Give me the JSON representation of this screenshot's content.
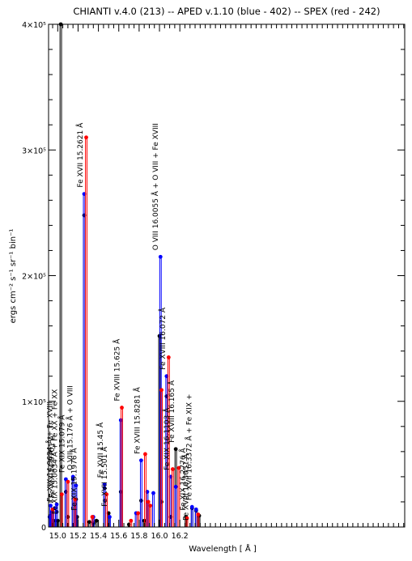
{
  "chart_data": {
    "type": "line",
    "title": "CHIANTI v.4.0 (213) -- APED v.1.10 (blue - 402) -- SPEX (red - 242)",
    "xlabel": "Wavelength [ Å ]",
    "ylabel": "ergs cm⁻² s⁻¹ sr⁻¹ bin⁻¹",
    "xlim": [
      14.91,
      18.41
    ],
    "ylim": [
      0,
      400000
    ],
    "x_ticks": [
      {
        "value": 15.0,
        "label": "15.0"
      },
      {
        "value": 15.2,
        "label": "15.2"
      },
      {
        "value": 15.4,
        "label": "15.4"
      },
      {
        "value": 15.6,
        "label": "15.6"
      },
      {
        "value": 15.8,
        "label": "15.8"
      },
      {
        "value": 16.0,
        "label": "16.0"
      },
      {
        "value": 16.2,
        "label": "16.2"
      }
    ],
    "x_minor_step": 0.05,
    "y_ticks": [
      {
        "value": 0,
        "label": "0"
      },
      {
        "value": 100000,
        "label": "1×10⁵"
      },
      {
        "value": 200000,
        "label": "2×10⁵"
      },
      {
        "value": 300000,
        "label": "3×10⁵"
      },
      {
        "value": 400000,
        "label": "4×10⁵"
      }
    ],
    "y_minor_step": 20000,
    "series": [
      {
        "name": "CHIANTI",
        "color": "#000000",
        "points": [
          [
            14.93,
            9000
          ],
          [
            14.96,
            5000
          ],
          [
            14.99,
            12000
          ],
          [
            15.0,
            5000
          ],
          [
            15.03,
            400000
          ],
          [
            15.08,
            28000
          ],
          [
            15.1,
            8000
          ],
          [
            15.15,
            38000
          ],
          [
            15.18,
            22000
          ],
          [
            15.19,
            8000
          ],
          [
            15.26,
            248000
          ],
          [
            15.31,
            4000
          ],
          [
            15.35,
            3000
          ],
          [
            15.38,
            5000
          ],
          [
            15.46,
            31000
          ],
          [
            15.5,
            11000
          ],
          [
            15.62,
            28000
          ],
          [
            15.7,
            2000
          ],
          [
            15.82,
            21000
          ],
          [
            15.85,
            5000
          ],
          [
            16.0,
            152000
          ],
          [
            16.02,
            20000
          ],
          [
            16.07,
            104000
          ],
          [
            16.11,
            8000
          ],
          [
            16.16,
            62000
          ],
          [
            16.26,
            8000
          ],
          [
            16.32,
            15000
          ],
          [
            16.36,
            13000
          ],
          [
            16.39,
            9000
          ]
        ]
      },
      {
        "name": "APED",
        "color": "#0000ff",
        "points": [
          [
            14.92,
            8000
          ],
          [
            14.93,
            17000
          ],
          [
            14.94,
            12000
          ],
          [
            14.97,
            15000
          ],
          [
            14.99,
            18000
          ],
          [
            15.08,
            38000
          ],
          [
            15.15,
            40000
          ],
          [
            15.18,
            33000
          ],
          [
            15.26,
            265000
          ],
          [
            15.35,
            8000
          ],
          [
            15.46,
            34000
          ],
          [
            15.51,
            8000
          ],
          [
            15.62,
            85000
          ],
          [
            15.77,
            11000
          ],
          [
            15.82,
            53000
          ],
          [
            15.88,
            28000
          ],
          [
            15.94,
            27000
          ],
          [
            16.01,
            215000
          ],
          [
            16.07,
            120000
          ],
          [
            16.11,
            40000
          ],
          [
            16.16,
            32000
          ],
          [
            16.32,
            16000
          ],
          [
            16.36,
            14000
          ]
        ]
      },
      {
        "name": "SPEX",
        "color": "#ff0000",
        "points": [
          [
            14.95,
            14000
          ],
          [
            15.04,
            26000
          ],
          [
            15.1,
            36000
          ],
          [
            15.17,
            22000
          ],
          [
            15.28,
            310000
          ],
          [
            15.34,
            8000
          ],
          [
            15.48,
            26000
          ],
          [
            15.63,
            95000
          ],
          [
            15.72,
            5000
          ],
          [
            15.79,
            11000
          ],
          [
            15.86,
            58000
          ],
          [
            15.89,
            20000
          ],
          [
            15.91,
            17000
          ],
          [
            16.02,
            109000
          ],
          [
            16.09,
            135000
          ],
          [
            16.13,
            46000
          ],
          [
            16.19,
            47000
          ],
          [
            16.27,
            7000
          ],
          [
            16.38,
            10000
          ]
        ]
      }
    ],
    "annotations": [
      {
        "text": "Fe XIX 14.9634 Å + Fe XVIII",
        "x": 14.96
      },
      {
        "text": "Fe XIX 14.9701 Å",
        "x": 14.98
      },
      {
        "text": "Fe XIX 15.0034 Å + Fe XX + Fe XX",
        "x": 15.01
      },
      {
        "text": "Fe XIX 15.079 Å",
        "x": 15.08
      },
      {
        "text": "O VIII 15.176 Å + O VIII",
        "x": 15.16
      },
      {
        "text": "Fe XIX 15.1976 Å",
        "x": 15.2
      },
      {
        "text": "Fe XVII 15.2621 Å",
        "x": 15.26
      },
      {
        "text": "Fe XVII 15.45 Å",
        "x": 15.46
      },
      {
        "text": "Fe XVII 15.501 Å",
        "x": 15.5
      },
      {
        "text": "Fe XVIII 15.625 Å",
        "x": 15.62
      },
      {
        "text": "Fe XVIII 15.8281 Å",
        "x": 15.82
      },
      {
        "text": "O VIII 16.0055 Å + O VIII + Fe XVIII",
        "x": 16.0
      },
      {
        "text": "Fe XVIII 16.072 Å",
        "x": 16.07
      },
      {
        "text": "Fe XIX 16.1103 Å",
        "x": 16.11
      },
      {
        "text": "Fe XVIII 16.165 Å",
        "x": 16.16
      },
      {
        "text": "Fe XIX 16.2776 Å",
        "x": 16.27
      },
      {
        "text": "Fe XVIII 16.3051 Å",
        "x": 16.3
      },
      {
        "text": "Fe XVII 16.3372 Å + Fe XIX +",
        "x": 16.33
      }
    ]
  }
}
